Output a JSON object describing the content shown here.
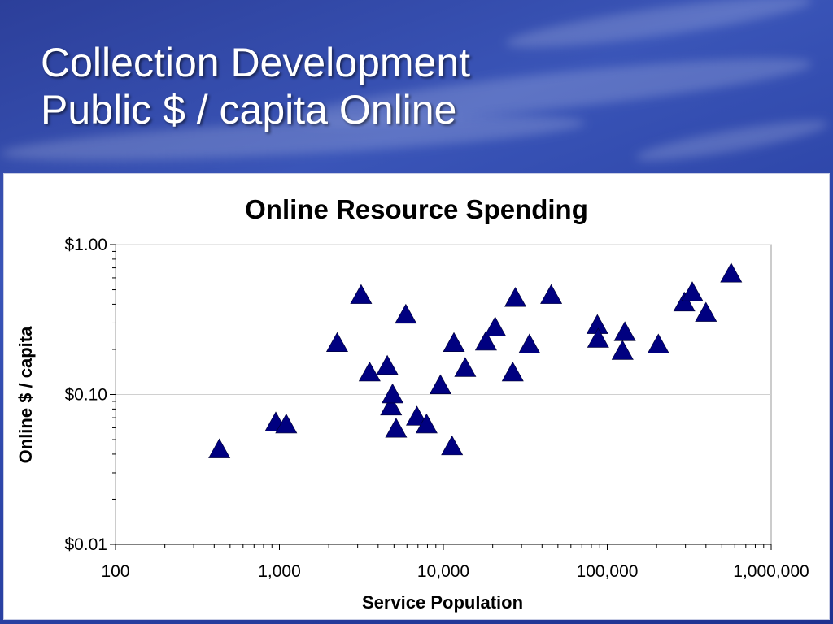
{
  "slide": {
    "title_line1": "Collection Development",
    "title_line2": "Public $ / capita Online"
  },
  "colors": {
    "marker": "#000080",
    "grid": "#d0d0d0",
    "plot_border": "#999999"
  },
  "chart_data": {
    "type": "scatter",
    "title": "Online Resource Spending",
    "xlabel": "Service Population",
    "ylabel": "Online $ / capita",
    "x_scale": "log",
    "y_scale": "log",
    "xlim": [
      100,
      1000000
    ],
    "ylim": [
      0.01,
      1.0
    ],
    "x_ticks": [
      100,
      1000,
      10000,
      100000,
      1000000
    ],
    "x_tick_labels": [
      "100",
      "1,000",
      "10,000",
      "100,000",
      "1,000,000"
    ],
    "y_ticks": [
      0.01,
      0.1,
      1.0
    ],
    "y_tick_labels": [
      "$0.01",
      "$0.10",
      "$1.00"
    ],
    "grid": "horizontal major",
    "marker": "triangle",
    "points": [
      {
        "x": 430,
        "y": 0.043
      },
      {
        "x": 950,
        "y": 0.065
      },
      {
        "x": 1100,
        "y": 0.063
      },
      {
        "x": 2250,
        "y": 0.22
      },
      {
        "x": 3150,
        "y": 0.46
      },
      {
        "x": 3550,
        "y": 0.14
      },
      {
        "x": 4550,
        "y": 0.155
      },
      {
        "x": 4800,
        "y": 0.083
      },
      {
        "x": 4900,
        "y": 0.1
      },
      {
        "x": 5150,
        "y": 0.059
      },
      {
        "x": 5900,
        "y": 0.34
      },
      {
        "x": 6900,
        "y": 0.071
      },
      {
        "x": 7900,
        "y": 0.063
      },
      {
        "x": 9600,
        "y": 0.115
      },
      {
        "x": 11300,
        "y": 0.045
      },
      {
        "x": 11600,
        "y": 0.22
      },
      {
        "x": 13600,
        "y": 0.15
      },
      {
        "x": 18200,
        "y": 0.225
      },
      {
        "x": 20700,
        "y": 0.28
      },
      {
        "x": 26500,
        "y": 0.14
      },
      {
        "x": 27500,
        "y": 0.44
      },
      {
        "x": 33500,
        "y": 0.215
      },
      {
        "x": 45500,
        "y": 0.46
      },
      {
        "x": 87000,
        "y": 0.29
      },
      {
        "x": 88000,
        "y": 0.235
      },
      {
        "x": 124000,
        "y": 0.195
      },
      {
        "x": 128000,
        "y": 0.26
      },
      {
        "x": 205000,
        "y": 0.215
      },
      {
        "x": 295000,
        "y": 0.41
      },
      {
        "x": 330000,
        "y": 0.48
      },
      {
        "x": 400000,
        "y": 0.35
      },
      {
        "x": 570000,
        "y": 0.64
      }
    ]
  }
}
